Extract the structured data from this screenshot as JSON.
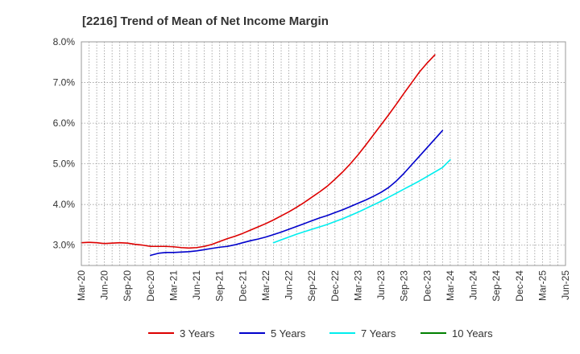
{
  "chart_data": {
    "type": "line",
    "title": "[2216]  Trend of Mean of Net Income Margin",
    "xlabel": "",
    "ylabel": "",
    "ylim": [
      2.5,
      8.0
    ],
    "yticks": [
      3.0,
      4.0,
      5.0,
      6.0,
      7.0,
      8.0
    ],
    "ytick_labels": [
      "3.0%",
      "4.0%",
      "5.0%",
      "6.0%",
      "7.0%",
      "8.0%"
    ],
    "x_labels": [
      "Mar-20",
      "Jun-20",
      "Sep-20",
      "Dec-20",
      "Mar-21",
      "Jun-21",
      "Sep-21",
      "Dec-21",
      "Mar-22",
      "Jun-22",
      "Sep-22",
      "Dec-22",
      "Mar-23",
      "Jun-23",
      "Sep-23",
      "Dec-23",
      "Mar-24",
      "Jun-24",
      "Sep-24",
      "Dec-24",
      "Mar-25",
      "Jun-25"
    ],
    "grid": true,
    "legend_position": "bottom",
    "series": [
      {
        "name": "3 Years",
        "color": "#dd0000",
        "start_index": 0,
        "values": [
          3.06,
          3.07,
          3.06,
          3.04,
          3.05,
          3.06,
          3.05,
          3.02,
          3.0,
          2.97,
          2.97,
          2.97,
          2.96,
          2.94,
          2.93,
          2.94,
          2.97,
          3.02,
          3.09,
          3.16,
          3.22,
          3.29,
          3.37,
          3.45,
          3.53,
          3.62,
          3.72,
          3.82,
          3.93,
          4.05,
          4.18,
          4.31,
          4.45,
          4.62,
          4.8,
          5.0,
          5.22,
          5.46,
          5.71,
          5.96,
          6.21,
          6.47,
          6.74,
          7.0,
          7.26,
          7.48,
          7.68
        ]
      },
      {
        "name": "5 Years",
        "color": "#0000cc",
        "start_index": 9,
        "values": [
          2.75,
          2.8,
          2.82,
          2.82,
          2.83,
          2.84,
          2.86,
          2.89,
          2.92,
          2.95,
          2.97,
          3.01,
          3.06,
          3.11,
          3.15,
          3.2,
          3.26,
          3.32,
          3.39,
          3.46,
          3.53,
          3.6,
          3.67,
          3.73,
          3.8,
          3.87,
          3.95,
          4.03,
          4.11,
          4.2,
          4.3,
          4.42,
          4.58,
          4.77,
          4.98,
          5.19,
          5.4,
          5.61,
          5.82
        ]
      },
      {
        "name": "7 Years",
        "color": "#00eeee",
        "start_index": 25,
        "values": [
          3.06,
          3.13,
          3.2,
          3.27,
          3.33,
          3.39,
          3.45,
          3.51,
          3.58,
          3.65,
          3.73,
          3.81,
          3.9,
          3.99,
          4.08,
          4.18,
          4.28,
          4.38,
          4.48,
          4.58,
          4.69,
          4.8,
          4.91,
          5.1
        ]
      },
      {
        "name": "10 Years",
        "color": "#008000",
        "start_index": 0,
        "values": []
      }
    ]
  }
}
